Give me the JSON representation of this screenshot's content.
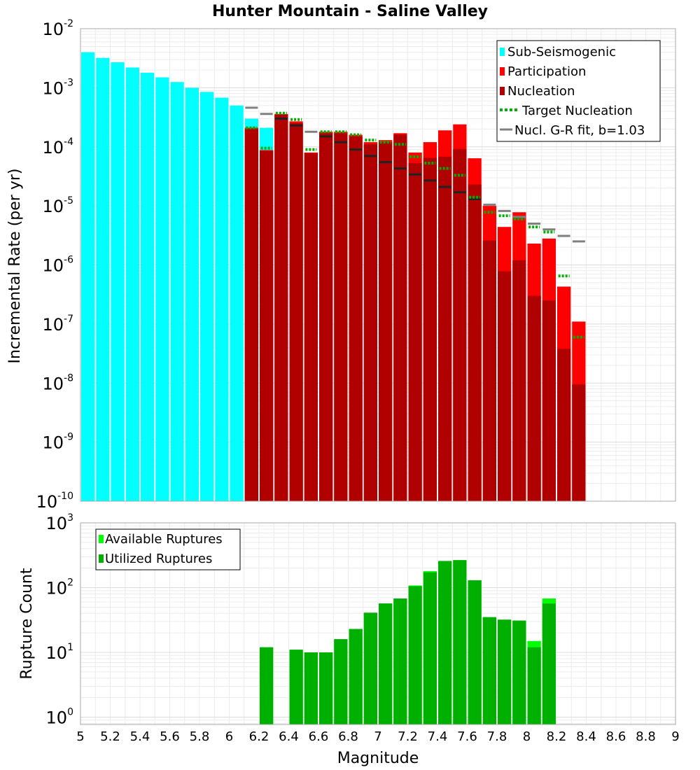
{
  "chart_data": [
    {
      "type": "bar",
      "title": "Hunter Mountain - Saline Valley",
      "ylabel": "Incremental Rate (per yr)",
      "xlabel": "Magnitude",
      "yscale": "log",
      "ylim": [
        1e-10,
        0.01
      ],
      "xlim": [
        5,
        9
      ],
      "ytick_labels": [
        {
          "base": "10",
          "exp": "-10"
        },
        {
          "base": "10",
          "exp": "-9"
        },
        {
          "base": "10",
          "exp": "-8"
        },
        {
          "base": "10",
          "exp": "-7"
        },
        {
          "base": "10",
          "exp": "-6"
        },
        {
          "base": "10",
          "exp": "-5"
        },
        {
          "base": "10",
          "exp": "-4"
        },
        {
          "base": "10",
          "exp": "-3"
        },
        {
          "base": "10",
          "exp": "-2"
        }
      ],
      "colors": {
        "sub_seismogenic": "#00ffff",
        "participation": "#ff0000",
        "nucleation": "#b00000",
        "target": "#00b000",
        "gr_fit": "#808080",
        "nucl_tick": "#222222"
      },
      "legend": {
        "location": "top-right",
        "entries": [
          "Sub-Seismogenic",
          "Participation",
          "Nucleation",
          "Target Nucleation",
          "Nucl. G-R fit, b=1.03"
        ]
      },
      "series": {
        "sub_seismogenic": {
          "x": [
            5.05,
            5.15,
            5.25,
            5.35,
            5.45,
            5.55,
            5.65,
            5.75,
            5.85,
            5.95,
            6.05,
            6.15,
            6.25
          ],
          "values": [
            0.004,
            0.0032,
            0.0027,
            0.0022,
            0.0018,
            0.0015,
            0.00125,
            0.001,
            0.00085,
            0.00068,
            0.0005,
            0.0003,
            0.00021
          ]
        },
        "participation": {
          "x": [
            6.15,
            6.25,
            6.35,
            6.45,
            6.55,
            6.65,
            6.75,
            6.85,
            6.95,
            7.05,
            7.15,
            7.25,
            7.35,
            7.45,
            7.55,
            7.65,
            7.75,
            7.85,
            7.95,
            8.05,
            8.15,
            8.25,
            8.35
          ],
          "values": [
            0.00021,
            8.8e-05,
            0.00036,
            0.00027,
            8e-05,
            0.00018,
            0.00018,
            0.00016,
            0.00012,
            0.00013,
            0.00017,
            8e-05,
            0.00012,
            0.00019,
            0.00024,
            6.4e-05,
            1e-05,
            4.4e-06,
            7.8e-06,
            2.3e-06,
            2.8e-06,
            4.3e-07,
            1.1e-07
          ]
        },
        "nucleation": {
          "x": [
            6.15,
            6.25,
            6.35,
            6.45,
            6.55,
            6.65,
            6.75,
            6.85,
            6.95,
            7.05,
            7.15,
            7.25,
            7.35,
            7.45,
            7.55,
            7.65,
            7.75,
            7.85,
            7.95,
            8.05,
            8.15,
            8.25,
            8.35
          ],
          "values": [
            0.0002,
            8.5e-05,
            0.00035,
            0.00025,
            7.8e-05,
            0.00017,
            0.00017,
            0.00015,
            0.00011,
            0.00012,
            0.00016,
            5.3e-05,
            6.5e-05,
            6.8e-05,
            9.2e-05,
            2.3e-05,
            2.6e-06,
            7.8e-07,
            1.2e-06,
            3e-07,
            2.5e-07,
            3.8e-08,
            9.5e-09
          ]
        },
        "target_nucleation": {
          "x": [
            6.15,
            6.25,
            6.35,
            6.45,
            6.55,
            6.65,
            6.75,
            6.85,
            6.95,
            7.05,
            7.15,
            7.25,
            7.35,
            7.45,
            7.55,
            7.65,
            7.75,
            7.85,
            7.95,
            8.05,
            8.15,
            8.25,
            8.35
          ],
          "values": [
            0.00021,
            9.5e-05,
            0.00037,
            0.00029,
            9e-05,
            0.00018,
            0.00018,
            0.00016,
            0.00013,
            0.00012,
            0.00011,
            6.8e-05,
            5.3e-05,
            4.3e-05,
            3.3e-05,
            1.4e-05,
            7.8e-06,
            6.8e-06,
            6e-06,
            4.4e-06,
            3.6e-06,
            6.5e-07,
            6e-08
          ]
        },
        "gr_fit": {
          "x": [
            6.15,
            6.25,
            6.35,
            6.45,
            6.55,
            6.65,
            6.75,
            6.85,
            6.95,
            7.05,
            7.15,
            7.25,
            7.35,
            7.45,
            7.55,
            7.65,
            7.75,
            7.85,
            7.95,
            8.05,
            8.15,
            8.25,
            8.35
          ],
          "values": [
            0.00046,
            0.00036,
            0.0003,
            0.00023,
            0.00018,
            0.00015,
            0.00012,
            9e-05,
            7e-05,
            5.5e-05,
            4.3e-05,
            3.4e-05,
            2.7e-05,
            2.1e-05,
            1.7e-05,
            1.3e-05,
            1.05e-05,
            8.2e-06,
            6.5e-06,
            5e-06,
            4e-06,
            3.1e-06,
            2.5e-06
          ]
        }
      }
    },
    {
      "type": "bar",
      "ylabel": "Rupture Count",
      "xlabel": "Magnitude",
      "yscale": "log",
      "ylim": [
        0.77,
        1000
      ],
      "xlim": [
        5,
        9
      ],
      "ytick_labels": [
        {
          "base": "10",
          "exp": "0"
        },
        {
          "base": "10",
          "exp": "1"
        },
        {
          "base": "10",
          "exp": "2"
        },
        {
          "base": "10",
          "exp": "3"
        }
      ],
      "colors": {
        "available": "#00ff00",
        "utilized": "#00b000"
      },
      "legend": {
        "location": "top-left",
        "entries": [
          "Available Ruptures",
          "Utilized Ruptures"
        ]
      },
      "series": {
        "available": {
          "x": [
            6.25,
            6.45,
            6.55,
            6.65,
            6.75,
            6.85,
            6.95,
            7.05,
            7.15,
            7.25,
            7.35,
            7.45,
            7.55,
            7.65,
            7.75,
            7.85,
            7.95,
            8.05,
            8.15
          ],
          "values": [
            12,
            11,
            10,
            10,
            16,
            23,
            41,
            57,
            68,
            108,
            180,
            258,
            266,
            130,
            35,
            32,
            31,
            15,
            68
          ]
        },
        "utilized": {
          "x": [
            6.25,
            6.45,
            6.55,
            6.65,
            6.75,
            6.85,
            6.95,
            7.05,
            7.15,
            7.25,
            7.35,
            7.45,
            7.55,
            7.65,
            7.75,
            7.85,
            7.95,
            8.05,
            8.15
          ],
          "values": [
            12,
            11,
            10,
            10,
            16,
            23,
            41,
            57,
            68,
            105,
            172,
            258,
            266,
            130,
            35,
            32,
            31,
            12,
            57
          ]
        }
      },
      "x_ticks": [
        "5",
        "5.2",
        "5.4",
        "5.6",
        "5.8",
        "6",
        "6.2",
        "6.4",
        "6.6",
        "6.8",
        "7",
        "7.2",
        "7.4",
        "7.6",
        "7.8",
        "8",
        "8.2",
        "8.4",
        "8.6",
        "8.8",
        "9"
      ]
    }
  ]
}
